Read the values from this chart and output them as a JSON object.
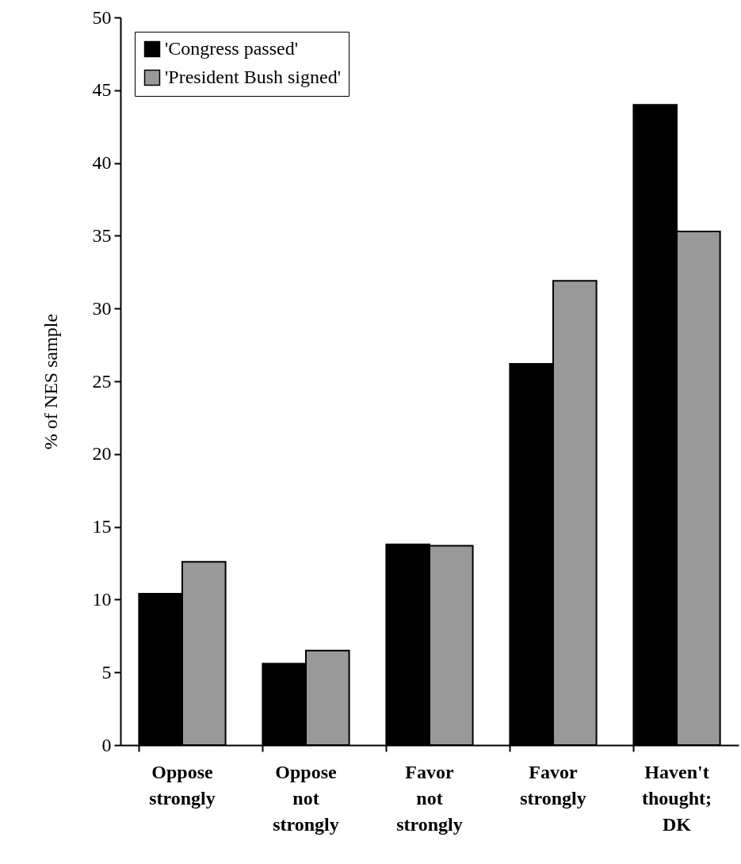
{
  "chart_data": {
    "type": "bar",
    "ylabel": "% of NES sample",
    "categories": [
      "Oppose strongly",
      "Oppose not strongly",
      "Favor not strongly",
      "Favor strongly",
      "Haven't thought; DK"
    ],
    "series": [
      {
        "name": "'Congress passed'",
        "color": "#000000",
        "values": [
          10.4,
          5.6,
          13.8,
          26.2,
          44.0
        ]
      },
      {
        "name": "'President Bush signed'",
        "color": "#999999",
        "values": [
          12.6,
          6.5,
          13.7,
          31.9,
          35.3
        ]
      }
    ],
    "ylim": [
      0,
      50
    ],
    "yticks": [
      0,
      5,
      10,
      15,
      20,
      25,
      30,
      35,
      40,
      45,
      50
    ],
    "legend": "top left"
  }
}
